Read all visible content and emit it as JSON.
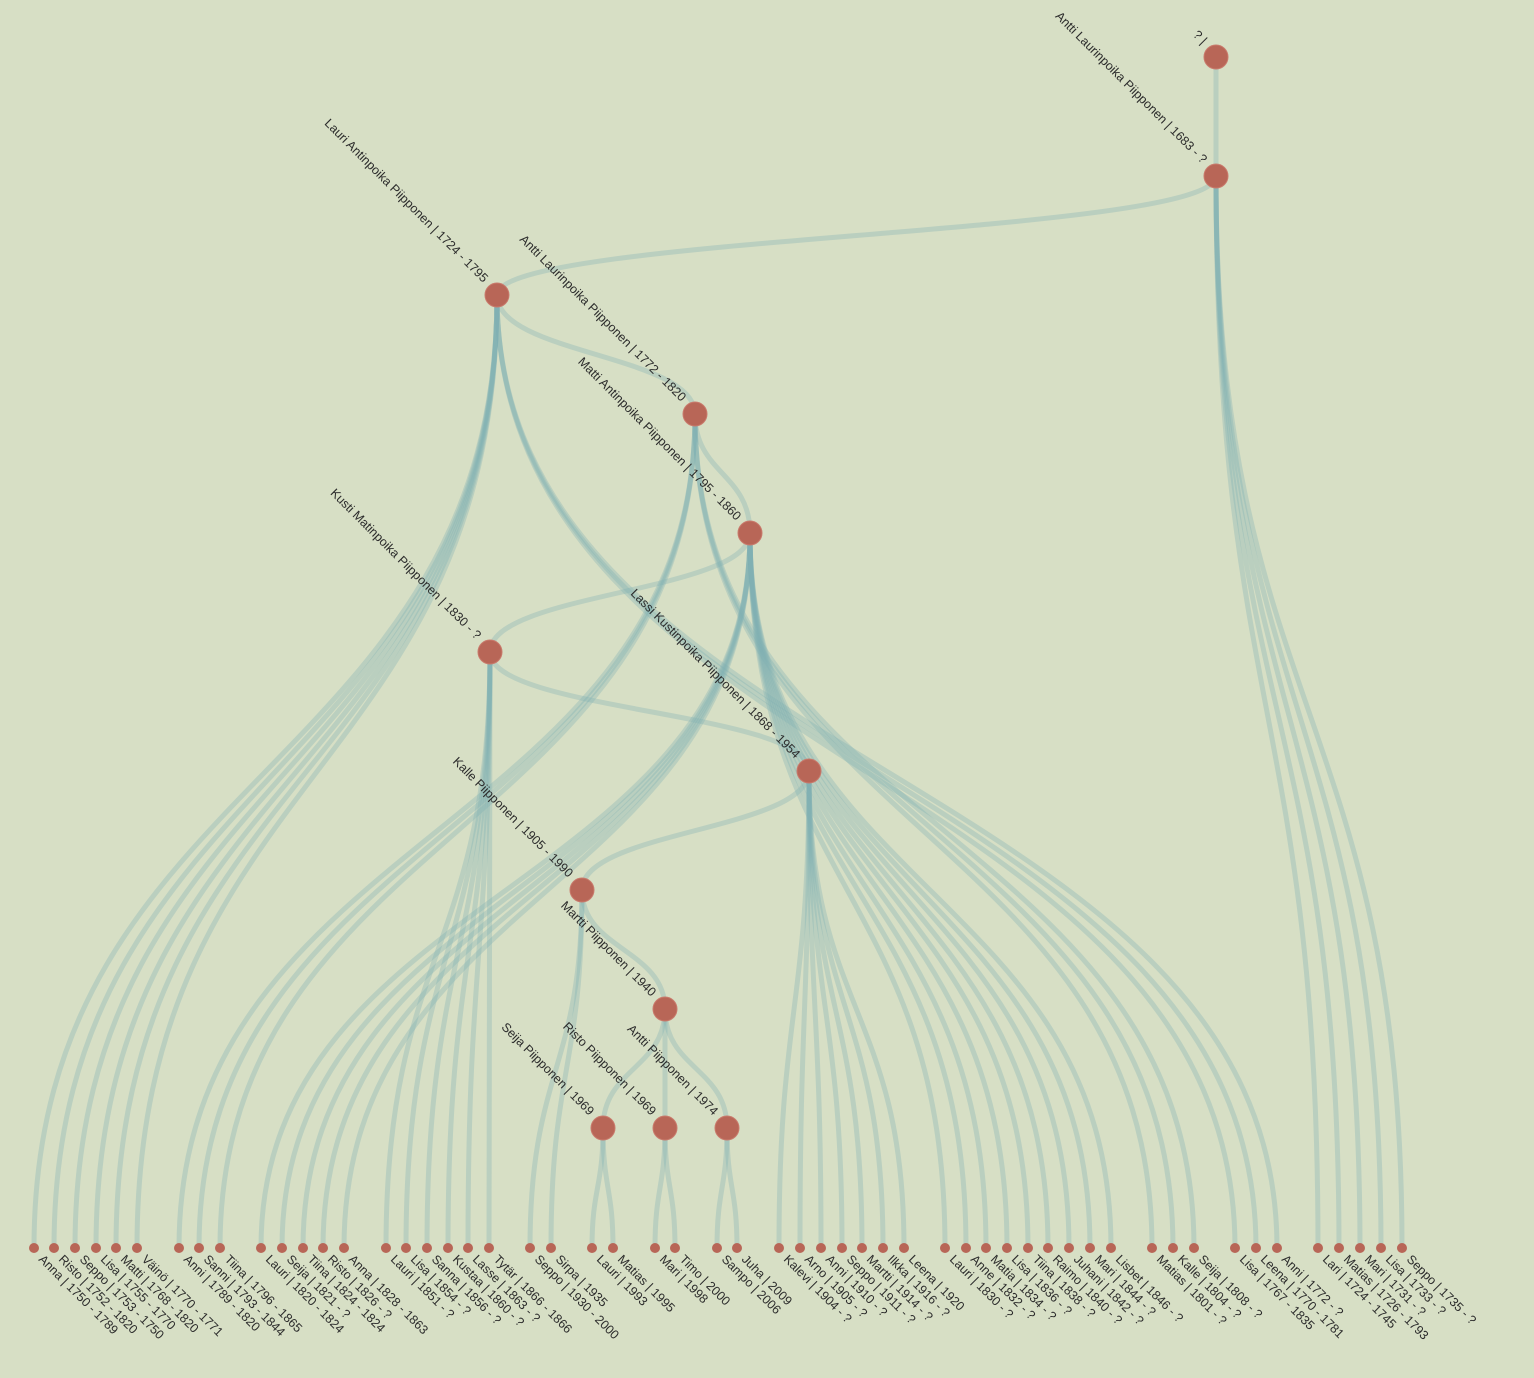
{
  "colors": {
    "background": "#d7dfc5",
    "link": "#7fb0b3",
    "node": "#b86657",
    "text": "#2b2b2b"
  },
  "nodes": [
    {
      "id": "root",
      "label": "? |",
      "parent": null
    },
    {
      "id": "antti1",
      "label": "Antti Laurinpoika Piipponen | 1683 - ?",
      "parent": "root"
    },
    {
      "id": "lauri",
      "label": "Lauri Antinpoika Piipponen | 1724 - 1795",
      "parent": "antti1"
    },
    {
      "id": "antti2",
      "label": "Antti Laurinpoika Piipponen | 1772 - 1820",
      "parent": "lauri"
    },
    {
      "id": "matti",
      "label": "Matti Antinpoika Piipponen | 1795 - 1860",
      "parent": "antti2"
    },
    {
      "id": "kusti",
      "label": "Kusti Matinpoika Piipponen | 1830 - ?",
      "parent": "matti"
    },
    {
      "id": "lassi",
      "label": "Lassi Kustinpoika Piipponen | 1868 - 1954",
      "parent": "kusti"
    },
    {
      "id": "kalle",
      "label": "Kalle Piipponen | 1905 - 1990",
      "parent": "lassi"
    },
    {
      "id": "martti",
      "label": "Martti Piipponen | 1940",
      "parent": "kalle"
    },
    {
      "id": "seija",
      "label": "Seija Piipponen | 1969",
      "parent": "martti"
    },
    {
      "id": "risto",
      "label": "Risto Piipponen | 1969",
      "parent": "martti"
    },
    {
      "id": "antti3",
      "label": "Antti Piipponen | 1974",
      "parent": "martti"
    }
  ],
  "leaves": [
    {
      "label": "Anna | 1750 - 1789",
      "parent": "lauri"
    },
    {
      "label": "Risto | 1752 - 1820",
      "parent": "lauri"
    },
    {
      "label": "Seppo | 1753 - 1750",
      "parent": "lauri"
    },
    {
      "label": "Lisa | 1755 - 1770",
      "parent": "lauri"
    },
    {
      "label": "Matti | 1768 - 1820",
      "parent": "lauri"
    },
    {
      "label": "Väinö | 1770 - 1771",
      "parent": "lauri"
    },
    {
      "label": "Anni | 1789 - 1820",
      "parent": "antti2"
    },
    {
      "label": "Sanni | 1793 - 1844",
      "parent": "antti2"
    },
    {
      "label": "Tiina | 1796 - 1865",
      "parent": "antti2"
    },
    {
      "label": "Lauri | 1820 - 1824",
      "parent": "matti"
    },
    {
      "label": "Seija | 1821 - ?",
      "parent": "matti"
    },
    {
      "label": "Tiina | 1824 - 1824",
      "parent": "matti"
    },
    {
      "label": "Risto | 1826 - ?",
      "parent": "matti"
    },
    {
      "label": "Anna | 1828 - 1863",
      "parent": "matti"
    },
    {
      "label": "Lauri | 1851 - ?",
      "parent": "kusti"
    },
    {
      "label": "Lisa | 1854 - ?",
      "parent": "kusti"
    },
    {
      "label": "Sanna | 1856 - ?",
      "parent": "kusti"
    },
    {
      "label": "Kustaa | 1860 - ?",
      "parent": "kusti"
    },
    {
      "label": "Lasse | 1863 - ?",
      "parent": "kusti"
    },
    {
      "label": "Tytär | 1866 - 1866",
      "parent": "kusti"
    },
    {
      "label": "Seppo | 1930 - 2000",
      "parent": "kalle"
    },
    {
      "label": "Sirpa | 1935",
      "parent": "kalle"
    },
    {
      "label": "Lauri | 1993",
      "parent": "seija"
    },
    {
      "label": "Matias | 1995",
      "parent": "seija"
    },
    {
      "label": "Mari | 1998",
      "parent": "risto"
    },
    {
      "label": "Timo | 2000",
      "parent": "risto"
    },
    {
      "label": "Sampo | 2006",
      "parent": "antti3"
    },
    {
      "label": "Juha | 2009",
      "parent": "antti3"
    },
    {
      "label": "Kalevi | 1904 - ?",
      "parent": "lassi"
    },
    {
      "label": "Arno | 1905 - ?",
      "parent": "lassi"
    },
    {
      "label": "Anni | 1910 - ?",
      "parent": "lassi"
    },
    {
      "label": "Seppo | 1911 - ?",
      "parent": "lassi"
    },
    {
      "label": "Martti | 1914 - ?",
      "parent": "lassi"
    },
    {
      "label": "Ilkka | 1916 - ?",
      "parent": "lassi"
    },
    {
      "label": "Leena | 1920",
      "parent": "lassi"
    },
    {
      "label": "Lauri | 1830 - ?",
      "parent": "matti"
    },
    {
      "label": "Anne | 1832 - ?",
      "parent": "matti"
    },
    {
      "label": "Matia | 1834 - ?",
      "parent": "matti"
    },
    {
      "label": "Lisa | 1836 - ?",
      "parent": "matti"
    },
    {
      "label": "Tiina | 1838 - ?",
      "parent": "matti"
    },
    {
      "label": "Raimo | 1840 - ?",
      "parent": "matti"
    },
    {
      "label": "Juhani | 1842 - ?",
      "parent": "matti"
    },
    {
      "label": "Mari | 1844 - ?",
      "parent": "matti"
    },
    {
      "label": "Lisbet | 1846 - ?",
      "parent": "matti"
    },
    {
      "label": "Matias | 1801 - ?",
      "parent": "antti2"
    },
    {
      "label": "Kalle | 1804 - ?",
      "parent": "antti2"
    },
    {
      "label": "Seija | 1808 - ?",
      "parent": "antti2"
    },
    {
      "label": "Lisa | 1767 - 1835",
      "parent": "lauri"
    },
    {
      "label": "Leena | 1770 - 1781",
      "parent": "lauri"
    },
    {
      "label": "Anni | 1772 - ?",
      "parent": "lauri"
    },
    {
      "label": "Lari | 1724 - 1745",
      "parent": "antti1"
    },
    {
      "label": "Matias | 1726 - 1793",
      "parent": "antti1"
    },
    {
      "label": "Mari | 1731 - ?",
      "parent": "antti1"
    },
    {
      "label": "Lisa | 1733 - ?",
      "parent": "antti1"
    },
    {
      "label": "Seppo | 1735 - ?",
      "parent": "antti1"
    }
  ]
}
